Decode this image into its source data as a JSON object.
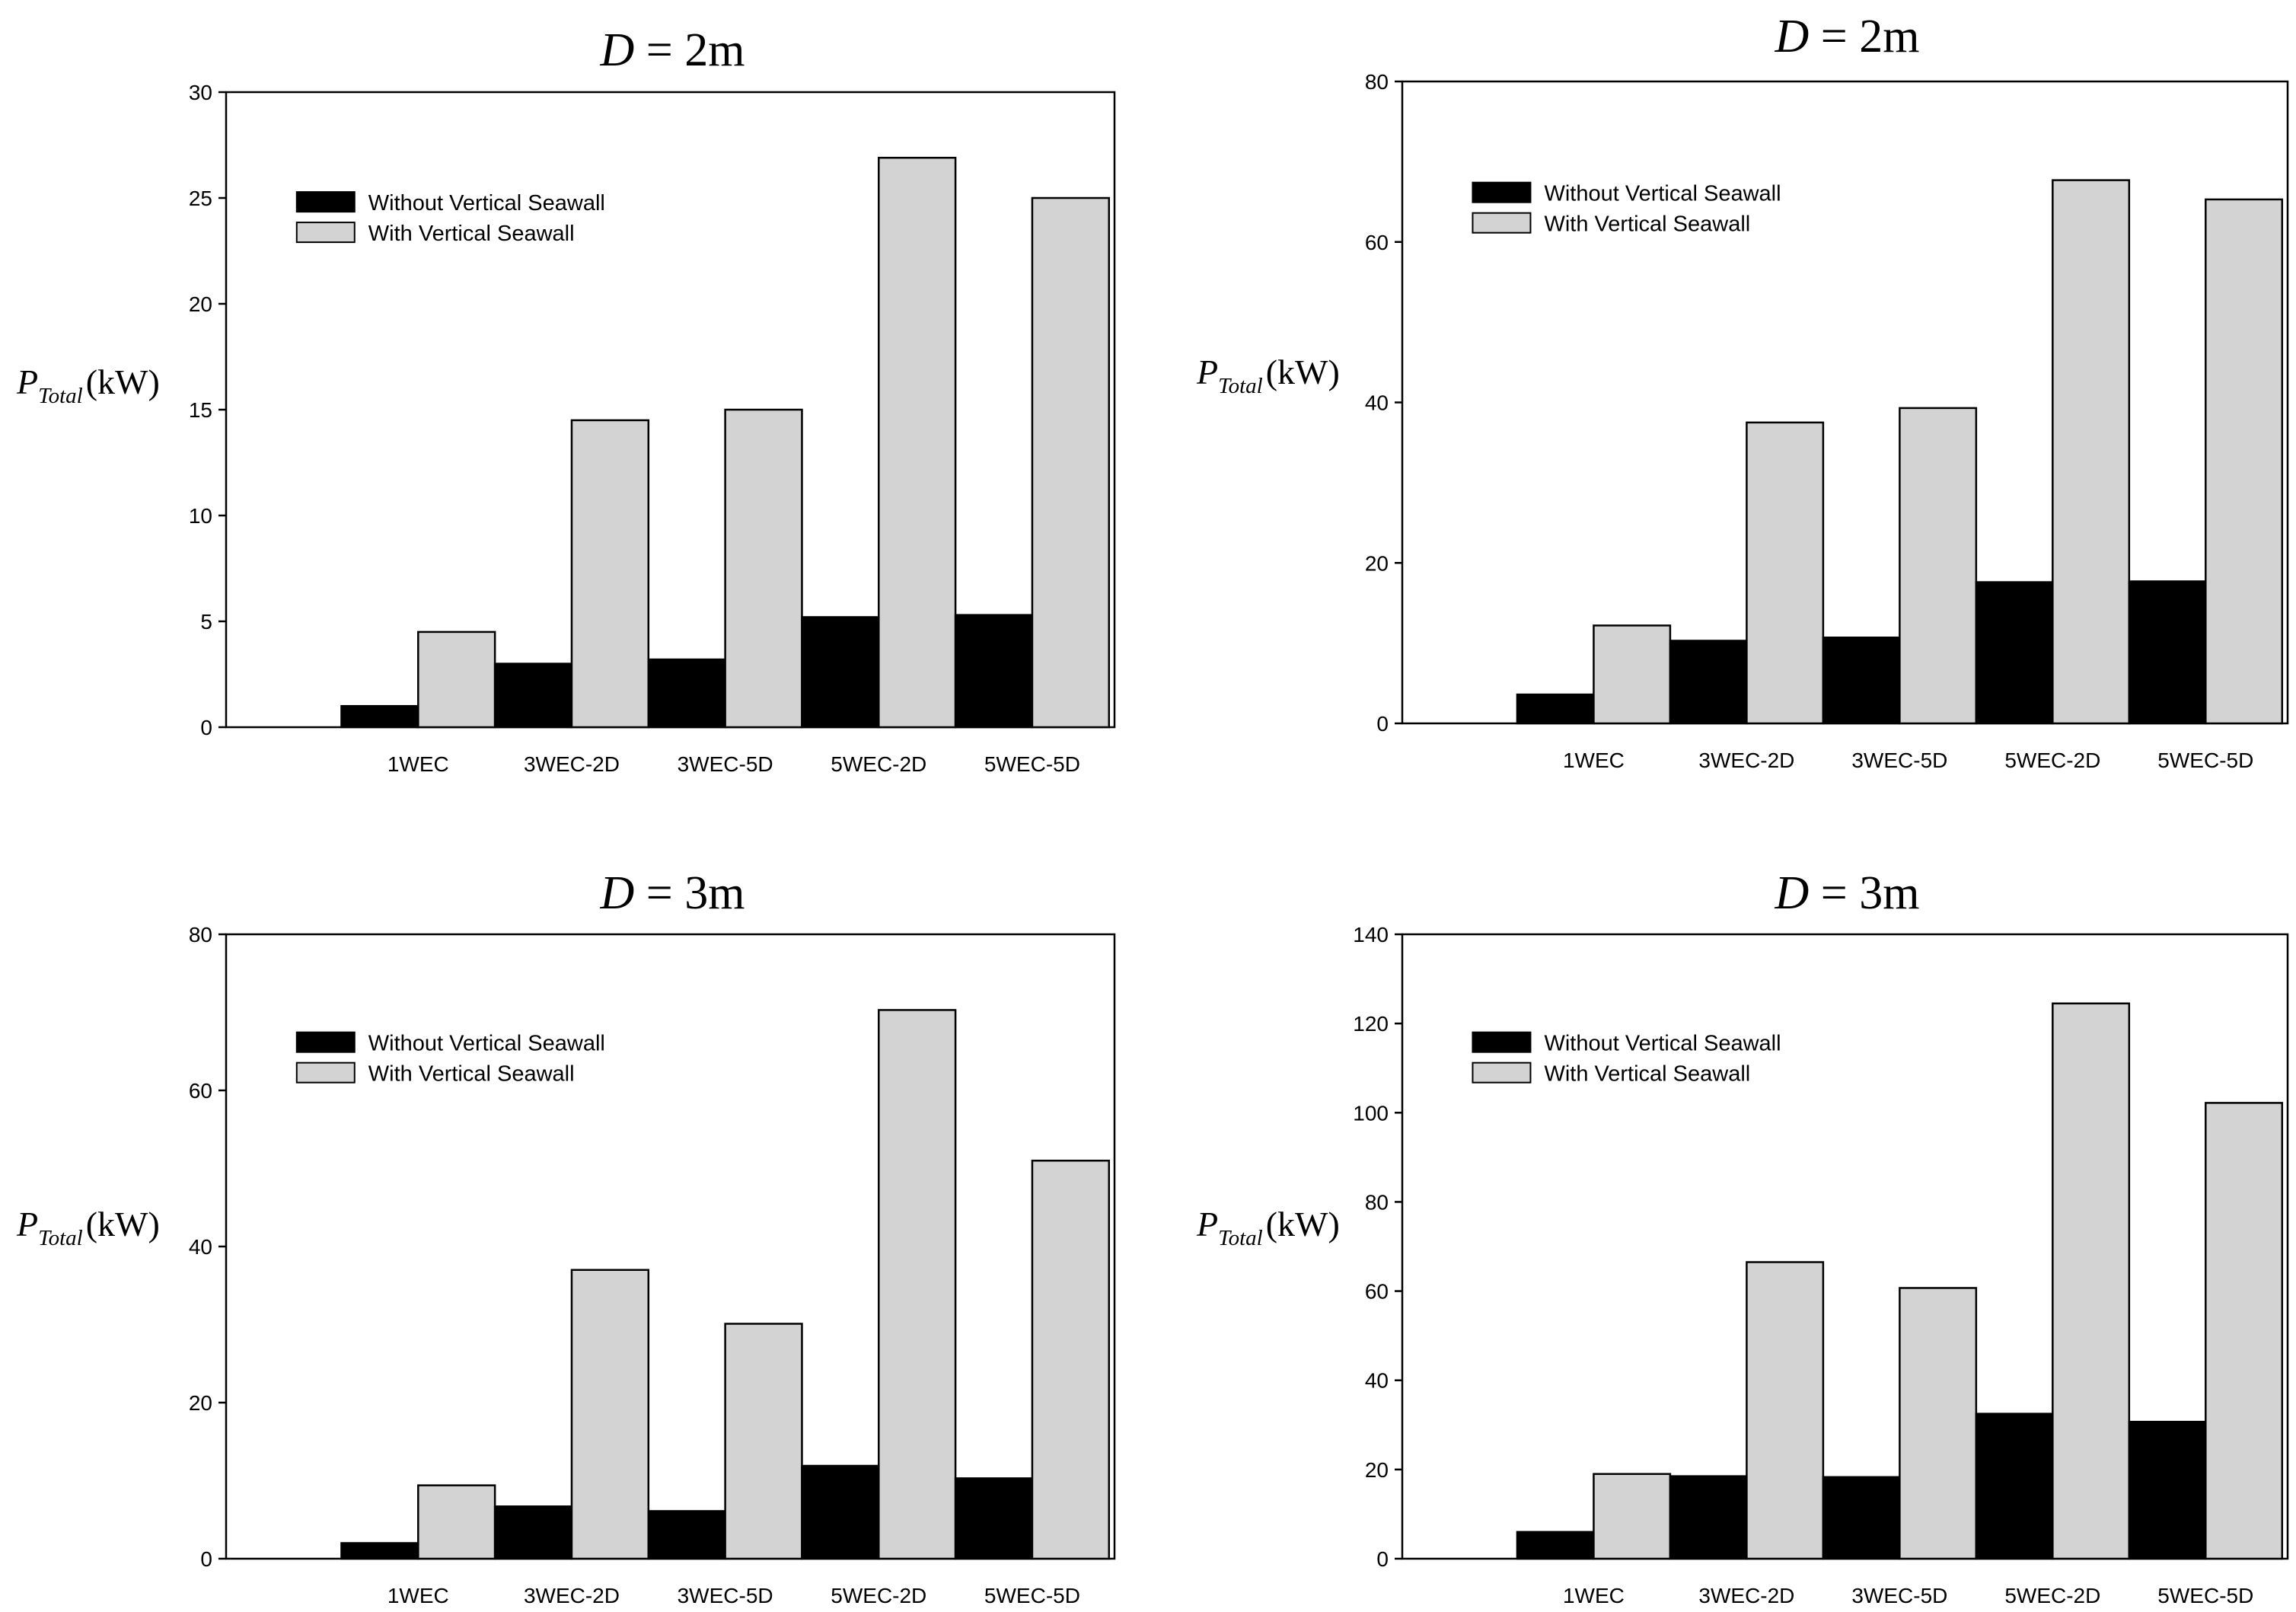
{
  "colors": {
    "without": "#000000",
    "with": "#d3d3d3",
    "frame": "#000000"
  },
  "chart_data": [
    {
      "type": "bar",
      "title": "D = 2m",
      "title_var": "D",
      "title_rest": " = 2m",
      "ylabel_main": "P",
      "ylabel_sub": "Total",
      "ylabel_unit": "(kW)",
      "categories": [
        "1WEC",
        "3WEC-2D",
        "3WEC-5D",
        "5WEC-2D",
        "5WEC-5D"
      ],
      "ylim": [
        0,
        30
      ],
      "yticks": [
        0,
        5,
        10,
        15,
        20,
        25,
        30
      ],
      "legend": [
        "Without Vertical Seawall",
        "With Vertical Seawall"
      ],
      "series": [
        {
          "name": "Without Vertical Seawall",
          "values": [
            1.0,
            3.0,
            3.2,
            5.2,
            5.3
          ]
        },
        {
          "name": "With Vertical Seawall",
          "values": [
            4.5,
            14.5,
            15.0,
            26.9,
            25.0
          ]
        }
      ]
    },
    {
      "type": "bar",
      "title": "D = 2m",
      "title_var": "D",
      "title_rest": " = 2m",
      "ylabel_main": "P",
      "ylabel_sub": "Total",
      "ylabel_unit": "(kW)",
      "categories": [
        "1WEC",
        "3WEC-2D",
        "3WEC-5D",
        "5WEC-2D",
        "5WEC-5D"
      ],
      "ylim": [
        0,
        80
      ],
      "yticks": [
        0,
        20,
        40,
        60,
        80
      ],
      "legend": [
        "Without Vertical Seawall",
        "With Vertical Seawall"
      ],
      "series": [
        {
          "name": "Without Vertical Seawall",
          "values": [
            3.6,
            10.3,
            10.7,
            17.6,
            17.7
          ]
        },
        {
          "name": "With Vertical Seawall",
          "values": [
            12.2,
            37.5,
            39.3,
            67.7,
            65.3
          ]
        }
      ]
    },
    {
      "type": "bar",
      "title": "D = 3m",
      "title_var": "D",
      "title_rest": " = 3m",
      "ylabel_main": "P",
      "ylabel_sub": "Total",
      "ylabel_unit": "(kW)",
      "categories": [
        "1WEC",
        "3WEC-2D",
        "3WEC-5D",
        "5WEC-2D",
        "5WEC-5D"
      ],
      "ylim": [
        0,
        80
      ],
      "yticks": [
        0,
        20,
        40,
        60,
        80
      ],
      "legend": [
        "Without Vertical Seawall",
        "With Vertical Seawall"
      ],
      "series": [
        {
          "name": "Without Vertical Seawall",
          "values": [
            2.0,
            6.7,
            6.1,
            11.9,
            10.3
          ]
        },
        {
          "name": "With Vertical Seawall",
          "values": [
            9.4,
            37.0,
            30.1,
            70.3,
            51.0
          ]
        }
      ]
    },
    {
      "type": "bar",
      "title": "D = 3m",
      "title_var": "D",
      "title_rest": " = 3m",
      "ylabel_main": "P",
      "ylabel_sub": "Total",
      "ylabel_unit": "(kW)",
      "categories": [
        "1WEC",
        "3WEC-2D",
        "3WEC-5D",
        "5WEC-2D",
        "5WEC-5D"
      ],
      "ylim": [
        0,
        140
      ],
      "yticks": [
        0,
        20,
        40,
        60,
        80,
        100,
        120,
        140
      ],
      "legend": [
        "Without Vertical Seawall",
        "With Vertical Seawall"
      ],
      "series": [
        {
          "name": "Without Vertical Seawall",
          "values": [
            6.0,
            18.5,
            18.3,
            32.5,
            30.7
          ]
        },
        {
          "name": "With Vertical Seawall",
          "values": [
            19.0,
            66.5,
            60.7,
            124.5,
            102.2
          ]
        }
      ]
    }
  ]
}
